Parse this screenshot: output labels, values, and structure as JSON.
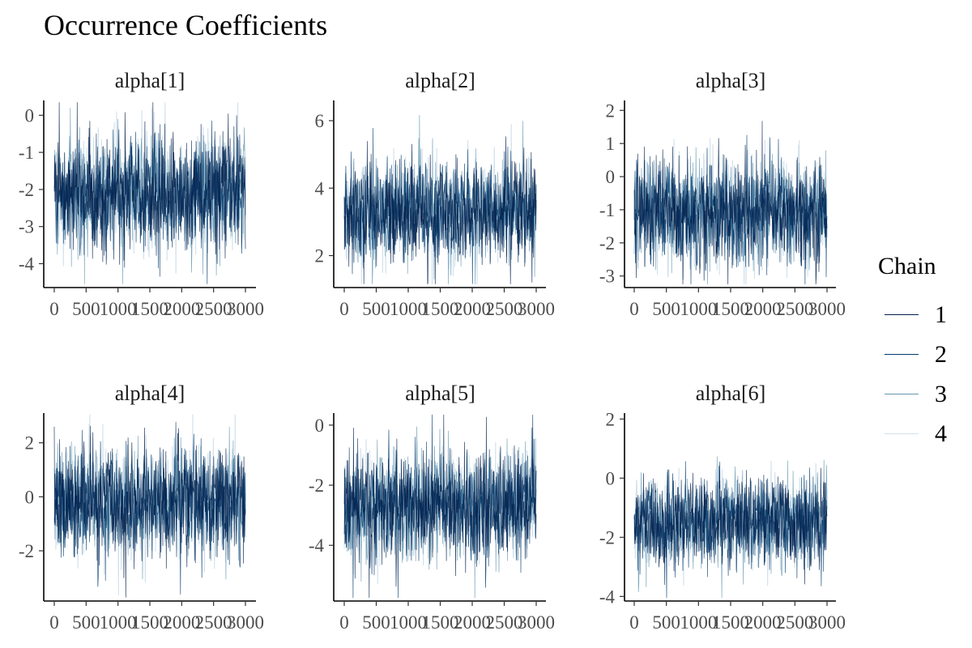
{
  "title": "Occurrence Coefficients",
  "legend": {
    "title": "Chain",
    "items": [
      {
        "label": "1",
        "color": "#011f4b"
      },
      {
        "label": "2",
        "color": "#03396c"
      },
      {
        "label": "3",
        "color": "#6497b1"
      },
      {
        "label": "4",
        "color": "#d1e1ec"
      }
    ]
  },
  "chart_data": [
    {
      "type": "line",
      "title": "alpha[1]",
      "xlim": [
        0,
        3000
      ],
      "ylim": [
        -4.6,
        0.4
      ],
      "x_ticks": [
        0,
        500,
        1000,
        1500,
        2000,
        2500,
        3000
      ],
      "y_ticks": [
        0,
        -1,
        -2,
        -3,
        -4
      ],
      "chains": [
        "1",
        "2",
        "3",
        "4"
      ],
      "center": -2.1,
      "spread": 0.75,
      "iterations": 3000
    },
    {
      "type": "line",
      "title": "alpha[2]",
      "xlim": [
        0,
        3000
      ],
      "ylim": [
        1.1,
        6.6
      ],
      "x_ticks": [
        0,
        500,
        1000,
        1500,
        2000,
        2500,
        3000
      ],
      "y_ticks": [
        6,
        4,
        2
      ],
      "chains": [
        "1",
        "2",
        "3",
        "4"
      ],
      "center": 3.3,
      "spread": 0.75,
      "iterations": 3000
    },
    {
      "type": "line",
      "title": "alpha[3]",
      "xlim": [
        0,
        3000
      ],
      "ylim": [
        -3.3,
        2.3
      ],
      "x_ticks": [
        0,
        500,
        1000,
        1500,
        2000,
        2500,
        3000
      ],
      "y_ticks": [
        2,
        1,
        0,
        -1,
        -2,
        -3
      ],
      "chains": [
        "1",
        "2",
        "3",
        "4"
      ],
      "center": -1.1,
      "spread": 0.8,
      "iterations": 3000
    },
    {
      "type": "line",
      "title": "alpha[4]",
      "xlim": [
        0,
        3000
      ],
      "ylim": [
        -3.8,
        3.1
      ],
      "x_ticks": [
        0,
        500,
        1000,
        1500,
        2000,
        2500,
        3000
      ],
      "y_ticks": [
        2,
        0,
        -2
      ],
      "chains": [
        "1",
        "2",
        "3",
        "4"
      ],
      "center": -0.2,
      "spread": 1.0,
      "iterations": 3000
    },
    {
      "type": "line",
      "title": "alpha[5]",
      "xlim": [
        0,
        3000
      ],
      "ylim": [
        -5.8,
        0.4
      ],
      "x_ticks": [
        0,
        500,
        1000,
        1500,
        2000,
        2500,
        3000
      ],
      "y_ticks": [
        0,
        -2,
        -4
      ],
      "chains": [
        "1",
        "2",
        "3",
        "4"
      ],
      "center": -2.7,
      "spread": 0.9,
      "iterations": 3000
    },
    {
      "type": "line",
      "title": "alpha[6]",
      "xlim": [
        0,
        3000
      ],
      "ylim": [
        -4.1,
        2.2
      ],
      "x_ticks": [
        0,
        500,
        1000,
        1500,
        2000,
        2500,
        3000
      ],
      "y_ticks": [
        2,
        0,
        -2,
        -4
      ],
      "chains": [
        "1",
        "2",
        "3",
        "4"
      ],
      "center": -1.5,
      "spread": 0.75,
      "iterations": 3000
    }
  ]
}
